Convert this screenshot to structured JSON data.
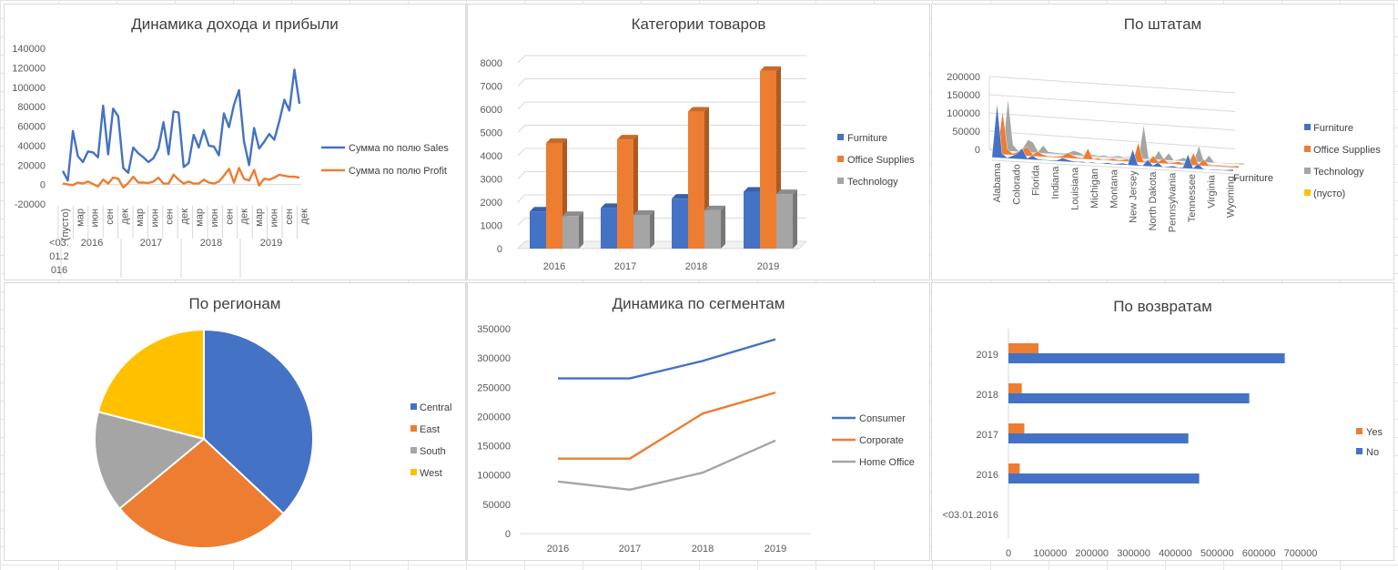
{
  "chart_data": [
    {
      "type": "line",
      "title": "Динамика дохода и прибыли",
      "ylim": [
        -20000,
        140000
      ],
      "yticks": [
        "140000",
        "120000",
        "100000",
        "80000",
        "60000",
        "40000",
        "20000",
        "0",
        "-20000"
      ],
      "month_labels": [
        "(пусто)",
        "мар",
        "июн",
        "сен",
        "дек",
        "мар",
        "июн",
        "сен",
        "дек",
        "мар",
        "июн",
        "сен",
        "дек",
        "мар",
        "июн",
        "сен",
        "дек"
      ],
      "year_labels": [
        "<03.\n01.2\n016",
        "2016",
        "2017",
        "2018",
        "2019"
      ],
      "series": [
        {
          "name": "Сумма по полю Sales",
          "color": "#4472C4",
          "values": [
            14000,
            4000,
            55000,
            29000,
            23000,
            34000,
            33000,
            28000,
            81000,
            31000,
            78000,
            70000,
            17000,
            12000,
            38000,
            32000,
            28000,
            23000,
            27000,
            37000,
            64000,
            31000,
            75000,
            74000,
            18000,
            22000,
            51000,
            38000,
            56000,
            40000,
            39000,
            30000,
            73000,
            59000,
            82000,
            97000,
            44000,
            20000,
            58000,
            37000,
            44000,
            52000,
            46000,
            65000,
            87000,
            76000,
            118000,
            83000
          ]
        },
        {
          "name": "Сумма по полю Profit",
          "color": "#ED7D31",
          "values": [
            1000,
            0,
            -500,
            2000,
            1000,
            3000,
            500,
            -2000,
            5000,
            1000,
            7000,
            6000,
            -3000,
            1500,
            8000,
            2000,
            2000,
            1500,
            3000,
            7000,
            1000,
            1000,
            10000,
            5000,
            1000,
            3000,
            1000,
            1000,
            5000,
            2000,
            1000,
            3000,
            9000,
            16000,
            2000,
            17000,
            6000,
            4000,
            15000,
            -1000,
            6000,
            5000,
            7000,
            10000,
            9000,
            8000,
            8000,
            7000
          ]
        }
      ]
    },
    {
      "type": "bar",
      "title": "Категории товаров",
      "categories": [
        "2016",
        "2017",
        "2018",
        "2019"
      ],
      "ylim": [
        0,
        8000
      ],
      "yticks": [
        "8000",
        "7000",
        "6000",
        "5000",
        "4000",
        "3000",
        "2000",
        "1000",
        "0"
      ],
      "series": [
        {
          "name": "Furniture",
          "color": "#4472C4",
          "values": [
            1600,
            1750,
            2150,
            2450
          ]
        },
        {
          "name": "Office Supplies",
          "color": "#ED7D31",
          "values": [
            4550,
            4700,
            5900,
            7650
          ]
        },
        {
          "name": "Technology",
          "color": "#A5A5A5",
          "values": [
            1400,
            1450,
            1650,
            2350
          ]
        }
      ]
    },
    {
      "type": "area",
      "title": "По штатам",
      "ylim": [
        0,
        200000
      ],
      "yticks": [
        "200000",
        "150000",
        "100000",
        "50000",
        "0"
      ],
      "x_labels": [
        "Alabama",
        "Colorado",
        "Florida",
        "Indiana",
        "Louisiana",
        "Michigan",
        "Montana",
        "New Jersey",
        "North Dakota",
        "Pennsylvania",
        "Tennessee",
        "Virginia",
        "Wyoming"
      ],
      "depth_label": "Furniture",
      "series": [
        {
          "name": "Furniture",
          "color": "#4472C4",
          "values": [
            5000,
            150000,
            12000,
            2000,
            8000,
            15000,
            30000,
            3000,
            12000,
            4000,
            2000,
            2000,
            2000,
            3000,
            10000,
            6000,
            3000,
            2000,
            3000,
            1000,
            3000,
            1000,
            2000,
            4000,
            2000,
            3000,
            5000,
            2000,
            45000,
            3000,
            2000,
            18000,
            3000,
            12000,
            1000,
            3000,
            5000,
            2000,
            3000,
            40000,
            2000,
            15000,
            2000,
            1000,
            2000,
            2000,
            2000,
            3000,
            5000
          ]
        },
        {
          "name": "Office Supplies",
          "color": "#ED7D31",
          "values": [
            8000,
            120000,
            15000,
            4000,
            10000,
            18000,
            25000,
            5000,
            14000,
            6000,
            3000,
            3000,
            4000,
            6000,
            15000,
            8000,
            4000,
            3000,
            30000,
            2000,
            5000,
            2000,
            3000,
            6000,
            3000,
            4000,
            7000,
            3000,
            55000,
            4000,
            3000,
            20000,
            4000,
            15000,
            2000,
            4000,
            8000,
            3000,
            4000,
            35000,
            3000,
            18000,
            3000,
            2000,
            3000,
            3000,
            3000,
            4000,
            6000
          ]
        },
        {
          "name": "Technology",
          "color": "#A5A5A5",
          "values": [
            6000,
            145000,
            18000,
            3000,
            12000,
            35000,
            28000,
            4000,
            22000,
            5000,
            4000,
            3000,
            3000,
            5000,
            12000,
            9000,
            3000,
            2000,
            4000,
            2000,
            4000,
            2000,
            3000,
            5000,
            2000,
            3000,
            6000,
            2000,
            95000,
            3000,
            3000,
            25000,
            3000,
            20000,
            1000,
            4000,
            10000,
            2000,
            3000,
            45000,
            2000,
            20000,
            2000,
            1000,
            2000,
            2000,
            2000,
            3000,
            4000
          ]
        },
        {
          "name": "(пусто)",
          "color": "#FFC000",
          "values": []
        }
      ]
    },
    {
      "type": "pie",
      "title": "По регионам",
      "categories": [
        "Central",
        "East",
        "South",
        "West"
      ],
      "values": [
        0.37,
        0.27,
        0.15,
        0.21
      ],
      "colors": [
        "#4472C4",
        "#ED7D31",
        "#A5A5A5",
        "#FFC000"
      ]
    },
    {
      "type": "line",
      "title": "Динамика по сегментам",
      "categories": [
        "2016",
        "2017",
        "2018",
        "2019"
      ],
      "ylim": [
        0,
        350000
      ],
      "yticks": [
        "350000",
        "300000",
        "250000",
        "200000",
        "150000",
        "100000",
        "50000",
        "0"
      ],
      "series": [
        {
          "name": "Consumer",
          "color": "#4472C4",
          "values": [
            265000,
            265000,
            295000,
            332000
          ]
        },
        {
          "name": "Corporate",
          "color": "#ED7D31",
          "values": [
            128000,
            128000,
            205000,
            241000
          ]
        },
        {
          "name": "Home Office",
          "color": "#A5A5A5",
          "values": [
            89000,
            75000,
            104000,
            159000
          ]
        }
      ]
    },
    {
      "type": "bar",
      "orientation": "horizontal",
      "title": "По возвратам",
      "categories": [
        "<03.01.2016",
        "2016",
        "2017",
        "2018",
        "2019"
      ],
      "xlim": [
        0,
        700000
      ],
      "xticks": [
        "0",
        "100000",
        "200000",
        "300000",
        "400000",
        "500000",
        "600000",
        "700000"
      ],
      "series": [
        {
          "name": "No",
          "color": "#4472C4",
          "values": [
            0,
            457000,
            431000,
            577000,
            662000
          ]
        },
        {
          "name": "Yes",
          "color": "#ED7D31",
          "values": [
            0,
            27000,
            38000,
            32000,
            72000
          ]
        }
      ]
    }
  ]
}
